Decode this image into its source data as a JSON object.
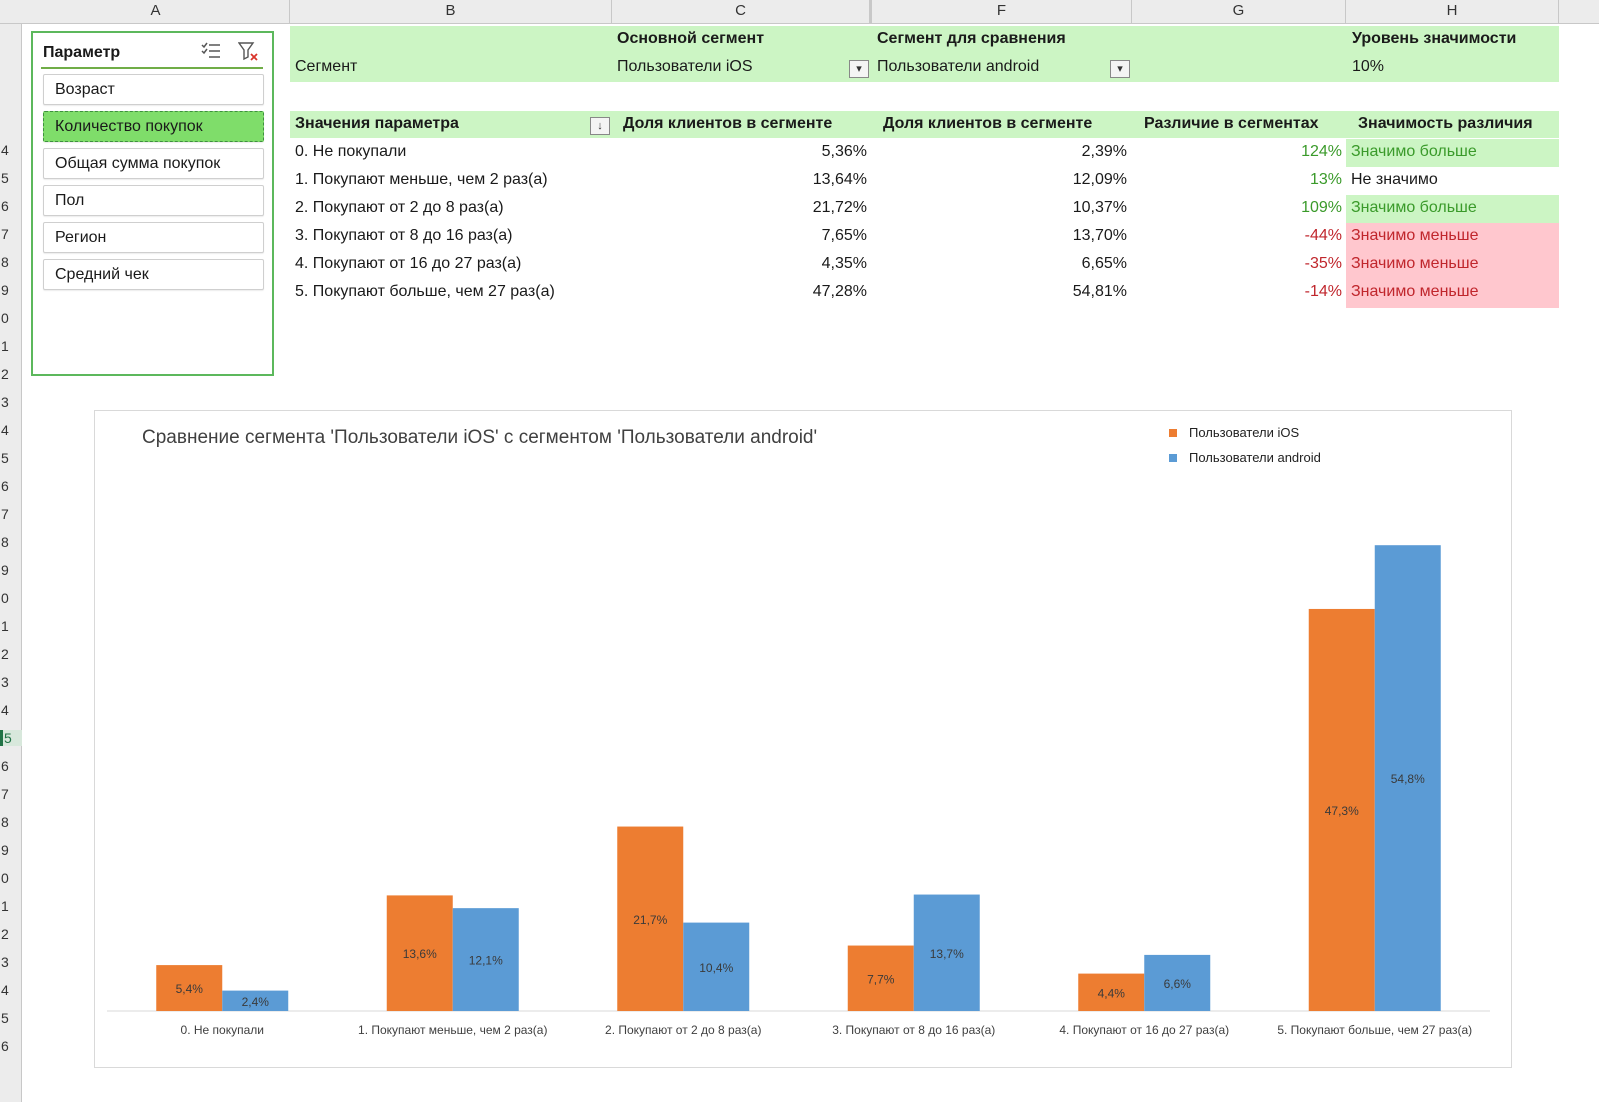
{
  "sheet": {
    "columns": [
      "A",
      "B",
      "C",
      "F",
      "G",
      "H"
    ],
    "rows": [
      "4",
      "5",
      "6",
      "7",
      "8",
      "9",
      "0",
      "1",
      "2",
      "3",
      "4",
      "5",
      "6",
      "7",
      "8",
      "9",
      "0",
      "1",
      "2",
      "3",
      "4",
      "5",
      "6",
      "7",
      "8",
      "9",
      "0",
      "1",
      "2",
      "3",
      "4",
      "5",
      "6"
    ]
  },
  "slicer": {
    "title": "Параметр",
    "multiselect_icon": "multi-select-icon",
    "clear_filter_icon": "clear-filter-icon",
    "items": [
      {
        "label": "Возраст",
        "selected": false
      },
      {
        "label": "Количество покупок",
        "selected": true
      },
      {
        "label": "Общая сумма покупок",
        "selected": false
      },
      {
        "label": "Пол",
        "selected": false
      },
      {
        "label": "Регион",
        "selected": false
      },
      {
        "label": "Средний чек",
        "selected": false
      }
    ]
  },
  "header": {
    "segment_label": "Сегмент",
    "main_segment_title": "Основной сегмент",
    "main_segment_value": "Пользователи iOS",
    "compare_segment_title": "Сегмент для сравнения",
    "compare_segment_value": "Пользователи android",
    "significance_title": "Уровень значимости",
    "significance_value": "10%"
  },
  "table": {
    "headers": [
      "Значения параметра",
      "Доля клиентов в сегменте",
      "Доля клиентов в сегменте",
      "Различие в сегментах",
      "Значимость различия"
    ],
    "rows": [
      {
        "label": "0. Не покупали",
        "main": "5,36%",
        "compare": "2,39%",
        "diff": "124%",
        "sig": "Значимо больше",
        "status": "more"
      },
      {
        "label": "1. Покупают меньше, чем 2 раз(а)",
        "main": "13,64%",
        "compare": "12,09%",
        "diff": "13%",
        "sig": "Не значимо",
        "status": "none"
      },
      {
        "label": "2. Покупают от 2 до 8 раз(а)",
        "main": "21,72%",
        "compare": "10,37%",
        "diff": "109%",
        "sig": "Значимо больше",
        "status": "more"
      },
      {
        "label": "3. Покупают от 8 до 16 раз(а)",
        "main": "7,65%",
        "compare": "13,70%",
        "diff": "-44%",
        "sig": "Значимо меньше",
        "status": "less"
      },
      {
        "label": "4. Покупают от 16 до 27 раз(а)",
        "main": "4,35%",
        "compare": "6,65%",
        "diff": "-35%",
        "sig": "Значимо меньше",
        "status": "less"
      },
      {
        "label": "5. Покупают больше, чем 27 раз(а)",
        "main": "47,28%",
        "compare": "54,81%",
        "diff": "-14%",
        "sig": "Значимо меньше",
        "status": "less"
      }
    ]
  },
  "colors": {
    "ios": "#ed7d31",
    "android": "#5b9bd5"
  },
  "chart_data": {
    "type": "bar",
    "title": "Сравнение сегмента 'Пользователи iOS' с сегментом 'Пользователи android'",
    "categories": [
      "0. Не покупали",
      "1. Покупают меньше, чем 2 раз(а)",
      "2. Покупают от 2 до 8 раз(а)",
      "3. Покупают от 8 до 16 раз(а)",
      "4. Покупают от 16 до 27 раз(а)",
      "5. Покупают больше, чем 27 раз(а)"
    ],
    "series": [
      {
        "name": "Пользователи iOS",
        "values": [
          5.4,
          13.6,
          21.7,
          7.7,
          4.4,
          47.3
        ],
        "labels": [
          "5,4%",
          "13,6%",
          "21,7%",
          "7,7%",
          "4,4%",
          "47,3%"
        ]
      },
      {
        "name": "Пользователи android",
        "values": [
          2.4,
          12.1,
          10.4,
          13.7,
          6.6,
          54.8
        ],
        "labels": [
          "2,4%",
          "12,1%",
          "10,4%",
          "13,7%",
          "6,6%",
          "54,8%"
        ]
      }
    ],
    "ylim": [
      0,
      60
    ],
    "legend_position": "top-right",
    "grid": false
  }
}
